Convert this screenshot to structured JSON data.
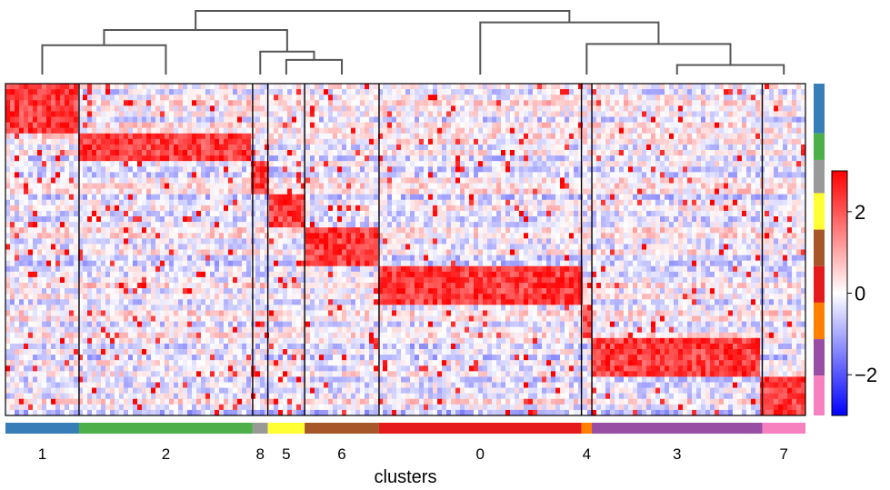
{
  "chart_data": {
    "type": "heatmap",
    "xlabel": "clusters",
    "cluster_order": [
      "1",
      "2",
      "8",
      "5",
      "6",
      "0",
      "4",
      "3",
      "7"
    ],
    "cluster_colors": {
      "0": "#e41a1c",
      "1": "#377eb8",
      "2": "#4daf4a",
      "3": "#984ea3",
      "4": "#ff7f00",
      "5": "#ffff33",
      "6": "#a65628",
      "7": "#f781bf",
      "8": "#999999"
    },
    "cluster_cell_share": {
      "1": 0.092,
      "2": 0.217,
      "8": 0.019,
      "5": 0.046,
      "6": 0.093,
      "0": 0.253,
      "4": 0.013,
      "3": 0.213,
      "7": 0.054
    },
    "gene_group_order": [
      "1",
      "2",
      "8",
      "5",
      "6",
      "0",
      "4",
      "3",
      "7"
    ],
    "gene_group_share": {
      "1": 0.15,
      "2": 0.08,
      "8": 0.1,
      "5": 0.11,
      "6": 0.11,
      "0": 0.11,
      "4": 0.11,
      "3": 0.11,
      "7": 0.12
    },
    "high_expression_blocks": [
      {
        "cells": "1",
        "genes": "1"
      },
      {
        "cells": "2",
        "genes": "2"
      },
      {
        "cells": "8",
        "genes": "8"
      },
      {
        "cells": "5",
        "genes": "5"
      },
      {
        "cells": "6",
        "genes": "6"
      },
      {
        "cells": "0",
        "genes": "0"
      },
      {
        "cells": "4",
        "genes": "4"
      },
      {
        "cells": "3",
        "genes": "3"
      },
      {
        "cells": "7",
        "genes": "7"
      }
    ],
    "dendrogram": [
      {
        "children": [
          "1",
          "2"
        ],
        "height": 0.46
      },
      {
        "children": [
          "6",
          "5"
        ],
        "height": 0.23
      },
      {
        "children": [
          "8",
          "5+6"
        ],
        "height": 0.36
      },
      {
        "children": [
          "1+2",
          "8+5+6"
        ],
        "height": 0.7
      },
      {
        "children": [
          "3",
          "7"
        ],
        "height": 0.15
      },
      {
        "children": [
          "4",
          "3+7"
        ],
        "height": 0.48
      },
      {
        "children": [
          "0",
          "4+3+7"
        ],
        "height": 0.82
      },
      {
        "children": [
          "left",
          "right"
        ],
        "height": 1.0
      }
    ],
    "colorbar": {
      "vmin": -3,
      "vmax": 3,
      "ticks": [
        2,
        0,
        -2
      ],
      "tick_labels": [
        "2",
        "0",
        "−2"
      ],
      "colors": [
        "#0000ff",
        "#ffffff",
        "#ff0000"
      ]
    },
    "grid": false
  }
}
